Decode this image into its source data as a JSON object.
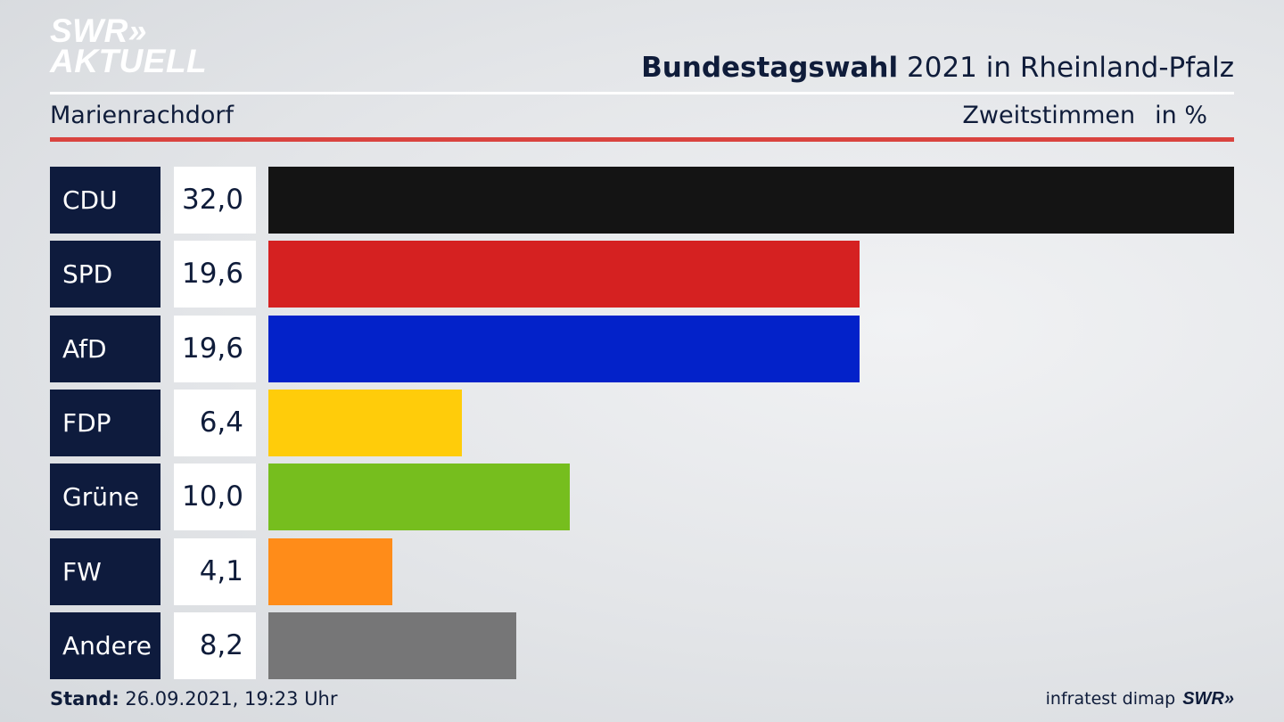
{
  "logo": {
    "line1": "SWR»",
    "line2": "AKTUELL"
  },
  "header": {
    "title_bold": "Bundestagswahl",
    "title_rest": "2021 in Rheinland-Pfalz",
    "place": "Marienrachdorf",
    "vote_type": "Zweitstimmen",
    "unit": "in %"
  },
  "chart_data": {
    "type": "bar",
    "orientation": "horizontal",
    "categories": [
      "CDU",
      "SPD",
      "AfD",
      "FDP",
      "Grüne",
      "FW",
      "Andere"
    ],
    "values": [
      32.0,
      19.6,
      19.6,
      6.4,
      10.0,
      4.1,
      8.2
    ],
    "labels": [
      "32,0",
      "19,6",
      "19,6",
      "6,4",
      "10,0",
      "4,1",
      "8,2"
    ],
    "colors": [
      "#141414",
      "#d52121",
      "#0322c9",
      "#ffcc0a",
      "#76be1e",
      "#ff8c19",
      "#767677"
    ],
    "xlim": [
      0,
      32.0
    ]
  },
  "footer": {
    "stand_label": "Stand:",
    "stand_value": "26.09.2021, 19:23 Uhr",
    "source": "infratest dimap",
    "brand": "SWR»"
  }
}
